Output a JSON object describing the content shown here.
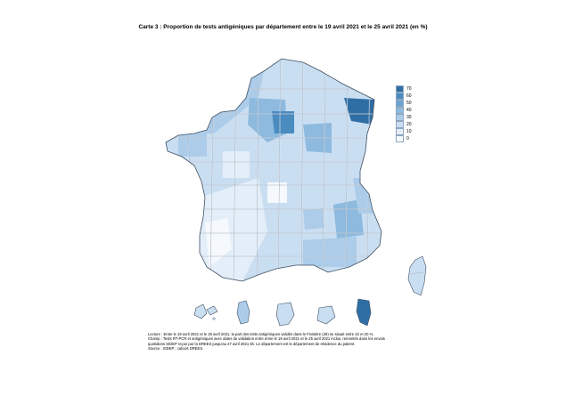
{
  "title": "Carte 3 : Proportion de tests antigéniques par département entre le 19 avril 2021 et le 25 avril 2021 (en %)",
  "legend": {
    "labels": [
      "70",
      "60",
      "50",
      "40",
      "30",
      "20",
      "10",
      "0"
    ],
    "colors": [
      "#2f6ea5",
      "#4a8bc0",
      "#6aa3cf",
      "#8dbade",
      "#acccea",
      "#cadef2",
      "#e3eef9",
      "#f5f9fd"
    ]
  },
  "notes": {
    "line1": "Lecture : Entre le 19 avril 2021 et le 25 avril 2021, la part des tests antigéniques validés dans le Finistère (29) se situait entre 10 et 20 %.",
    "line2": "Champ : Tests RT-PCR et antigéniques avec dates de validation entre entre le 19 avril 2021 et le 25 avril 2021 inclus, remontés dans les envois",
    "line3": "quotidiens SIDEP reçus par la DREES jusqu'au 27 avril 2021 5h. Le département est le département de résidence du patient.",
    "line4": "Source : SIDEP ; calculs DREES."
  },
  "colors": {
    "border": "#5a6e82",
    "dept_outline": "#ffffff"
  }
}
